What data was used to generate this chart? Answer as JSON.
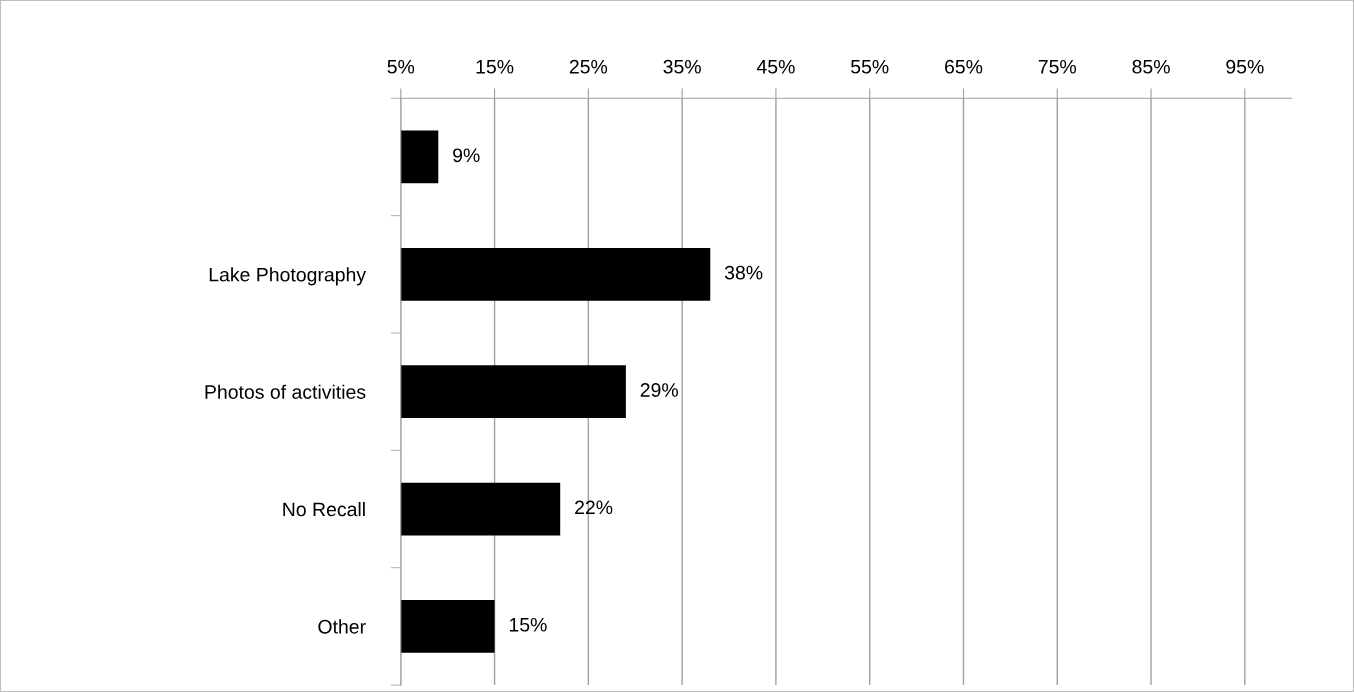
{
  "chart_data": {
    "type": "bar",
    "orientation": "horizontal",
    "categories": [
      null,
      "Lake Photography",
      "Photos of activities",
      "No Recall",
      "Other"
    ],
    "values": [
      9,
      38,
      29,
      22,
      15
    ],
    "value_labels": [
      "9%",
      "38%",
      "29%",
      "22%",
      "15%"
    ],
    "color": "#000000",
    "xlim": [
      5,
      100
    ],
    "xticks": [
      {
        "value": 5,
        "label": "5%"
      },
      {
        "value": 15,
        "label": "15%"
      },
      {
        "value": 25,
        "label": "25%"
      },
      {
        "value": 35,
        "label": "35%"
      },
      {
        "value": 45,
        "label": "45%"
      },
      {
        "value": 55,
        "label": "55%"
      },
      {
        "value": 65,
        "label": "65%"
      },
      {
        "value": 75,
        "label": "75%"
      },
      {
        "value": 85,
        "label": "85%"
      },
      {
        "value": 95,
        "label": "95%"
      }
    ],
    "grid": "x",
    "legend": false
  }
}
